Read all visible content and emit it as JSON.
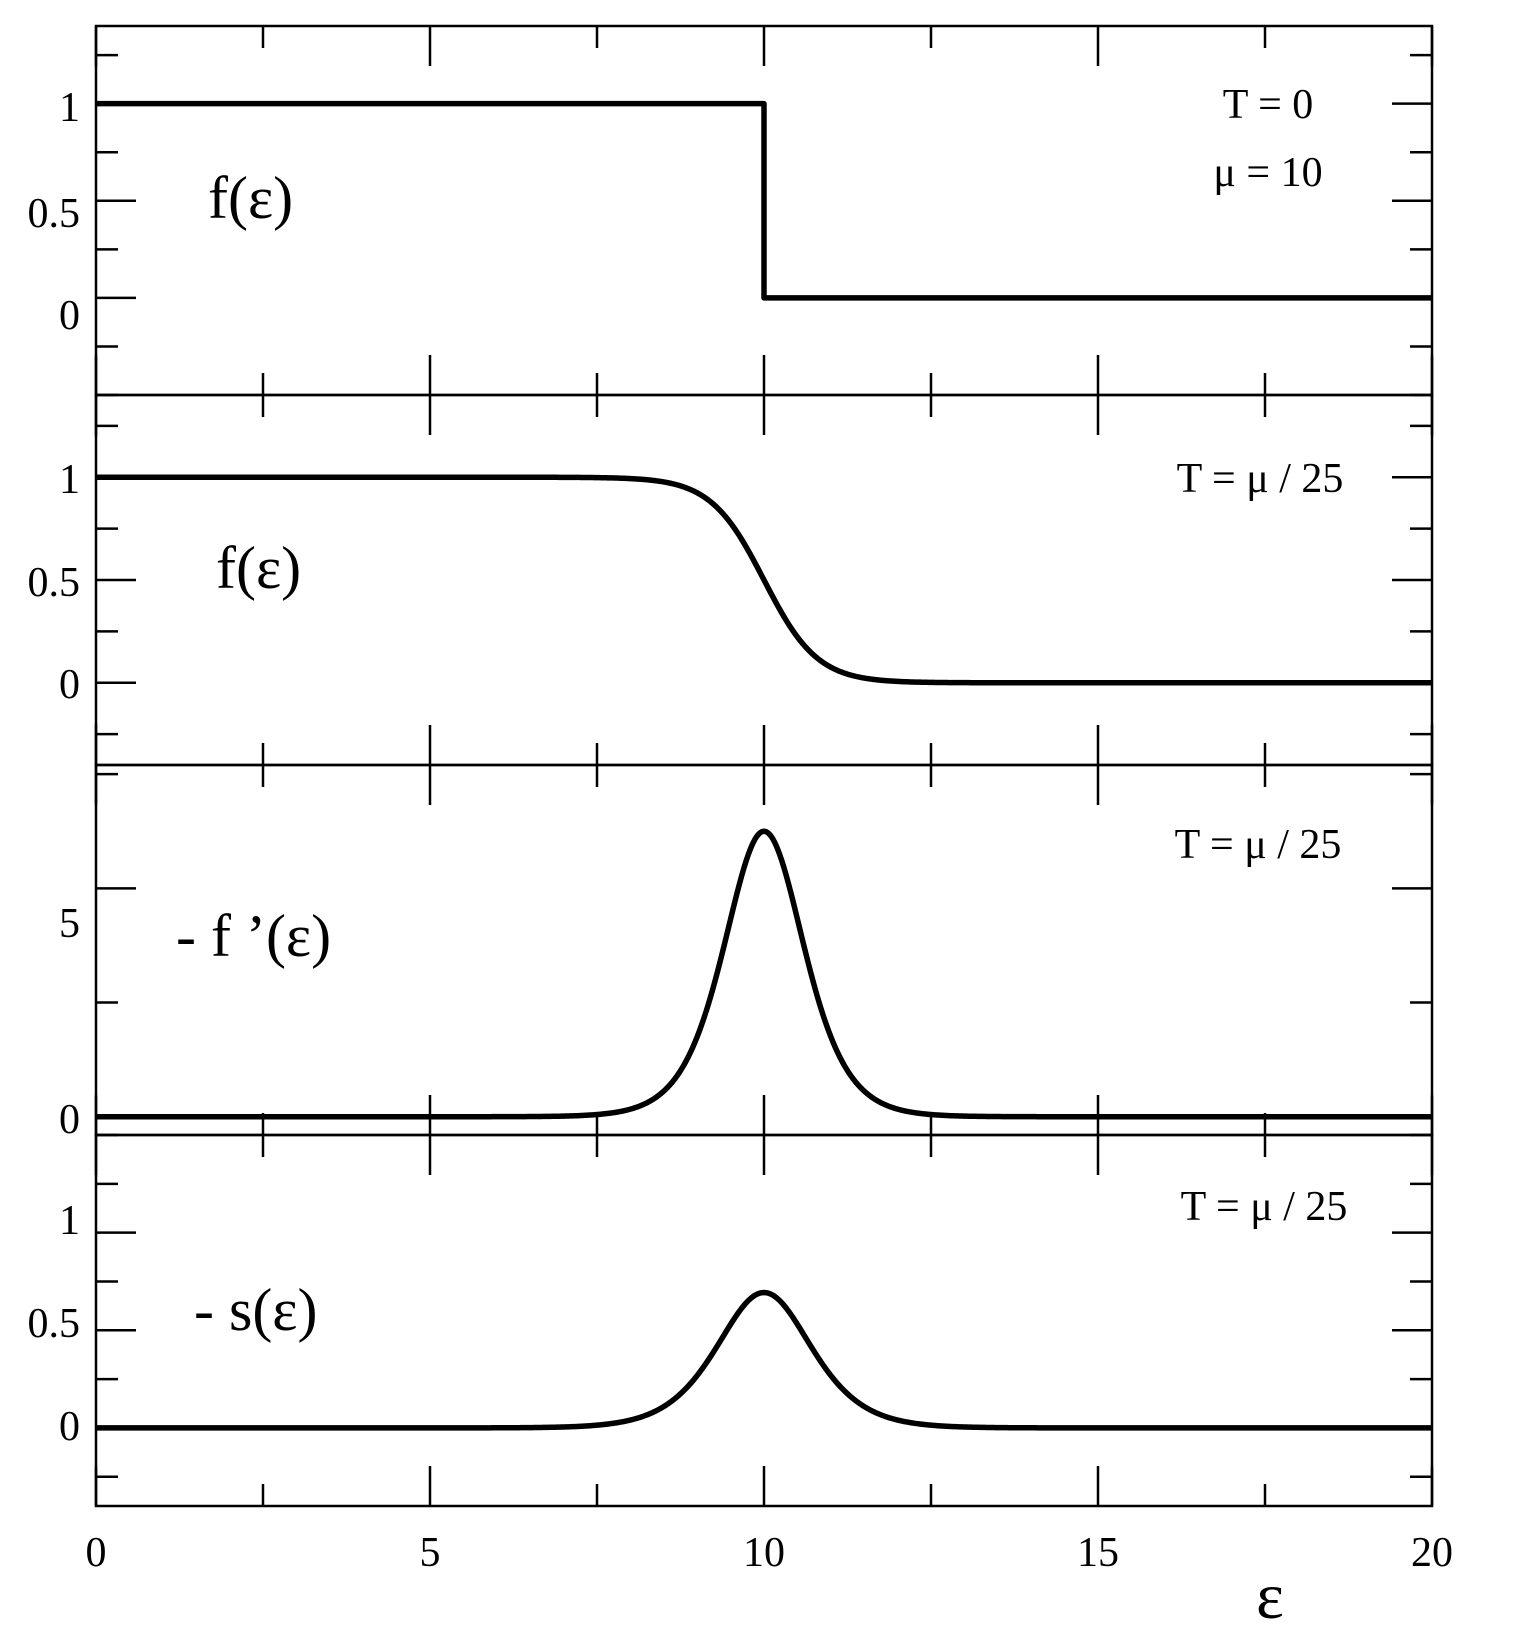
{
  "chart_data": {
    "type": "line",
    "xlabel": "ε",
    "xlim": [
      0,
      20
    ],
    "x_ticks": [
      0,
      5,
      10,
      15,
      20
    ],
    "x_tick_labels": [
      "0",
      "5",
      "10",
      "15",
      "20"
    ],
    "grid": false,
    "legend": "none",
    "line_color": "#000000",
    "panels": [
      {
        "id": "step",
        "label": "f(ε)",
        "annotations": [
          "T = 0",
          "μ = 10"
        ],
        "ylim": [
          -0.5,
          1.4
        ],
        "y_ticks": [
          0,
          0.5,
          1
        ],
        "y_tick_labels": [
          "0",
          "0.5",
          "1"
        ],
        "curve": "fermi",
        "mu": 10,
        "T": 0
      },
      {
        "id": "fermi",
        "label": "f(ε)",
        "annotations": [
          "T = μ / 25"
        ],
        "ylim": [
          -0.4,
          1.4
        ],
        "y_ticks": [
          0,
          0.5,
          1
        ],
        "y_tick_labels": [
          "0",
          "0.5",
          "1"
        ],
        "curve": "fermi",
        "mu": 10,
        "T": 0.4
      },
      {
        "id": "derivative",
        "label": "- f ’(ε)",
        "annotations": [
          "T = μ / 25"
        ],
        "ylim": [
          -0.4,
          7.7
        ],
        "y_ticks": [
          0,
          5
        ],
        "y_tick_labels": [
          "0",
          "5"
        ],
        "curve": "neg_derivative",
        "scale": 10,
        "mu": 10,
        "T": 0.4
      },
      {
        "id": "entropy",
        "label": "- s(ε)",
        "annotations": [
          "T = μ / 25"
        ],
        "ylim": [
          -0.4,
          1.5
        ],
        "y_ticks": [
          0,
          0.5,
          1
        ],
        "y_tick_labels": [
          "0",
          "0.5",
          "1"
        ],
        "curve": "entropy",
        "mu": 10,
        "T": 0.4
      }
    ]
  }
}
